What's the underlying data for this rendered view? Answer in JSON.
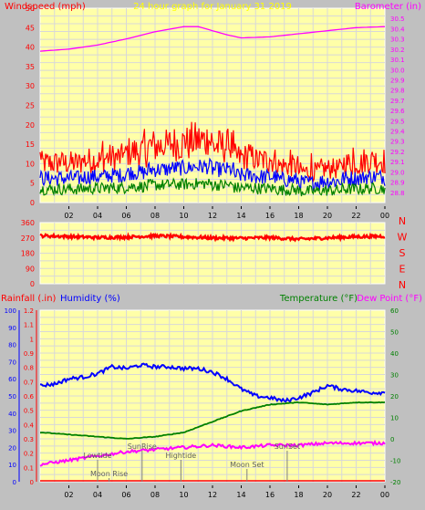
{
  "chart_data": [
    {
      "type": "line",
      "title": "24 hour graph for January 31 2019",
      "ylabel": "Windspeed (mph)",
      "y2label": "Barometer (in)",
      "ylim": [
        0,
        50
      ],
      "y2lim": [
        28.7,
        30.6
      ],
      "x_ticks": [
        "02",
        "04",
        "06",
        "08",
        "10",
        "12",
        "14",
        "16",
        "18",
        "20",
        "22",
        "00"
      ],
      "y_ticks": [
        "0",
        "5",
        "10",
        "15",
        "20",
        "25",
        "30",
        "35",
        "40",
        "45",
        "50"
      ],
      "y2_ticks": [
        "28.8",
        "28.9",
        "29.0",
        "29.1",
        "29.2",
        "29.3",
        "29.4",
        "29.5",
        "29.6",
        "29.7",
        "29.8",
        "29.9",
        "30.0",
        "30.1",
        "30.2",
        "30.3",
        "30.4",
        "30.5"
      ],
      "series": [
        {
          "name": "Windspeed (mph)",
          "color": "#ff0000",
          "axis": "left",
          "kind": "gust"
        },
        {
          "name": "",
          "color": "#0000ff",
          "axis": "left",
          "kind": "avg"
        },
        {
          "name": "",
          "color": "#008000",
          "axis": "left",
          "kind": "low"
        },
        {
          "name": "Barometer (in)",
          "color": "#ff00ff",
          "axis": "right",
          "x": [
            0,
            2,
            4,
            6,
            8,
            10,
            11,
            13,
            14,
            16,
            18,
            20,
            22,
            24
          ],
          "y": [
            30.18,
            30.2,
            30.24,
            30.3,
            30.37,
            30.42,
            30.42,
            30.34,
            30.31,
            30.32,
            30.35,
            30.38,
            30.41,
            30.42
          ]
        }
      ],
      "grid": true
    },
    {
      "type": "line",
      "title": "",
      "ylim": [
        0,
        360
      ],
      "y_ticks": [
        "0",
        "90",
        "180",
        "270",
        "360"
      ],
      "x_ticks": [
        "02",
        "04",
        "06",
        "08",
        "10",
        "12",
        "14",
        "16",
        "18",
        "20",
        "22",
        "00"
      ],
      "compass_labels": [
        "N",
        "W",
        "S",
        "E",
        "N"
      ],
      "series": [
        {
          "name": "",
          "color": "#ff0000",
          "x": [
            0,
            2,
            4,
            6,
            8,
            10,
            12,
            14,
            16,
            18,
            20,
            22,
            24
          ],
          "y": [
            283,
            278,
            272,
            275,
            282,
            276,
            270,
            268,
            272,
            262,
            270,
            277,
            280
          ]
        }
      ],
      "grid": true
    },
    {
      "type": "line",
      "title": "",
      "left_labels": [
        "Rainfall (.in)",
        "Humidity (%)"
      ],
      "right_labels": [
        "Temperature (°F)",
        "Dew Point (°F)"
      ],
      "rain_ylim": [
        0,
        1.2
      ],
      "humidity_ylim": [
        0,
        100
      ],
      "temp_ylim": [
        -20,
        60
      ],
      "rain_ticks": [
        "0",
        "0.1",
        "0.2",
        "0.3",
        "0.4",
        "0.5",
        "0.6",
        "0.7",
        "0.8",
        "0.9",
        "1",
        "1.1",
        "1.2"
      ],
      "humidity_ticks": [
        "0",
        "10",
        "20",
        "30",
        "40",
        "50",
        "60",
        "70",
        "80",
        "90",
        "100"
      ],
      "temp_ticks": [
        "-20",
        "-10",
        "0",
        "10",
        "20",
        "30",
        "40",
        "50",
        "60"
      ],
      "x_ticks": [
        "02",
        "04",
        "06",
        "08",
        "10",
        "12",
        "14",
        "16",
        "18",
        "20",
        "22",
        "00"
      ],
      "series": [
        {
          "name": "Humidity (%)",
          "color": "#0000ff",
          "axis": "humidity",
          "x": [
            0,
            1,
            2,
            3,
            4,
            5,
            6,
            7,
            8,
            9,
            10,
            11,
            12,
            13,
            14,
            15,
            16,
            17,
            18,
            19,
            20,
            21,
            22,
            23,
            24
          ],
          "y": [
            56,
            57,
            60,
            61,
            63,
            67,
            66,
            68,
            67,
            67,
            66,
            66,
            64,
            60,
            54,
            50,
            49,
            47,
            49,
            52,
            56,
            54,
            53,
            52,
            52
          ]
        },
        {
          "name": "Temperature (°F)",
          "color": "#008000",
          "axis": "temp",
          "x": [
            0,
            2,
            4,
            6,
            8,
            10,
            12,
            14,
            16,
            18,
            20,
            22,
            24
          ],
          "y": [
            3,
            2,
            1,
            0,
            1,
            3,
            8,
            13,
            16,
            17,
            16,
            17,
            17
          ]
        },
        {
          "name": "Dew Point (°F)",
          "color": "#ff00ff",
          "axis": "temp",
          "x": [
            0,
            2,
            4,
            6,
            8,
            10,
            12,
            14,
            16,
            18,
            20,
            22,
            24
          ],
          "y": [
            -12,
            -10,
            -8,
            -6,
            -5,
            -4,
            -3,
            -4,
            -3,
            -3,
            -2,
            -2,
            -2
          ]
        },
        {
          "name": "Rainfall (.in)",
          "color": "#ff0000",
          "axis": "rain",
          "x": [
            0,
            24
          ],
          "y": [
            0,
            0
          ]
        }
      ],
      "events": [
        {
          "label": "Lowtide",
          "hour": 4.0,
          "row": 3
        },
        {
          "label": "Moon Rise",
          "hour": 4.8,
          "row": 1
        },
        {
          "label": "SunRise",
          "hour": 7.1,
          "row": 4
        },
        {
          "label": "Hightide",
          "hour": 9.8,
          "row": 3
        },
        {
          "label": "Moon Set",
          "hour": 14.4,
          "row": 2
        },
        {
          "label": "SunSet",
          "hour": 17.2,
          "row": 4
        }
      ],
      "grid": true
    }
  ],
  "colors": {
    "background": "#c0c0c0",
    "plot": "#ffffa8",
    "grid": "#d8d8d8"
  }
}
